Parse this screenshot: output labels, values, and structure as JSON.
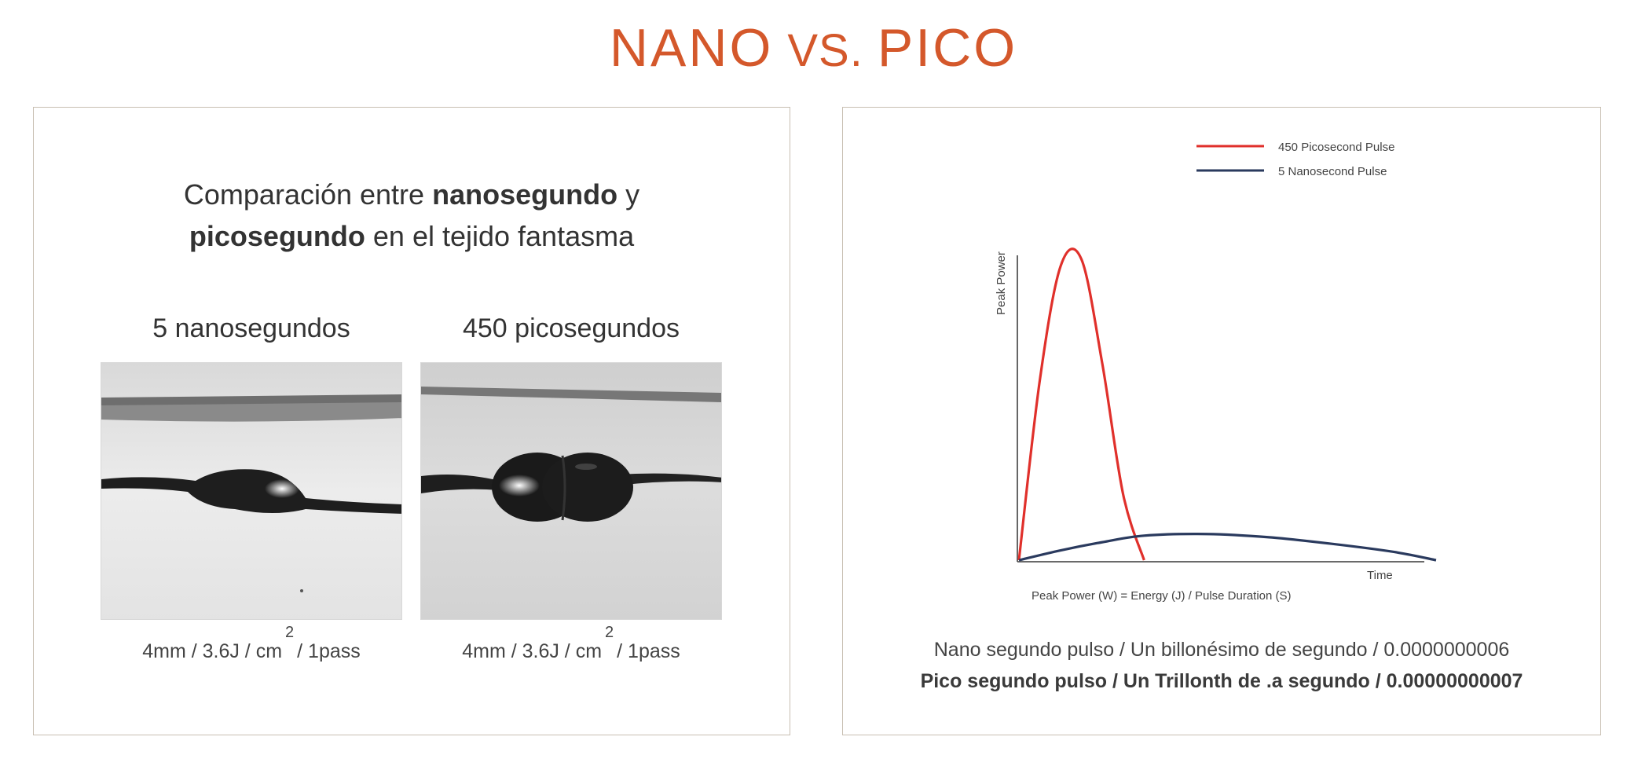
{
  "title": {
    "left": "NANO",
    "vs": "VS.",
    "right": "PICO"
  },
  "left_panel": {
    "heading": {
      "part1": "Comparación entre ",
      "bold1": "nanosegundo",
      "part2": " y",
      "bold2": "picosegundo",
      "part3": " en el tejido fantasma"
    },
    "columns": [
      {
        "title": "5 nanosegundos",
        "spec_main": "4mm / 3.6J / cm",
        "spec_sup": "2",
        "spec_end": "/ 1pass"
      },
      {
        "title": "450 picosegundos",
        "spec_main": "4mm / 3.6J / cm",
        "spec_sup": "2",
        "spec_end": "/ 1pass"
      }
    ]
  },
  "right_panel": {
    "chart_data": {
      "type": "line",
      "ylabel": "Peak Power",
      "xlabel": "Time",
      "formula": "Peak Power (W) = Energy (J) / Pulse Duration (S)",
      "legend_position": "top-right",
      "series": [
        {
          "name": "450 Picosecond Pulse",
          "color": "#e0302b",
          "x": [
            0,
            0.05,
            0.1,
            0.15,
            0.2,
            0.25,
            0.3
          ],
          "y": [
            0,
            0.55,
            0.9,
            0.92,
            0.6,
            0.2,
            0
          ]
        },
        {
          "name": "5 Nanosecond Pulse",
          "color": "#2a3a5e",
          "x": [
            0,
            0.1,
            0.2,
            0.3,
            0.45,
            0.6,
            0.75,
            0.9,
            1.0
          ],
          "y": [
            0,
            0.03,
            0.055,
            0.075,
            0.08,
            0.07,
            0.05,
            0.025,
            0
          ]
        }
      ]
    },
    "desc_line1": "Nano segundo pulso / Un billonésimo de segundo / 0.0000000006",
    "desc_line2": "Pico segundo pulso / Un Trillonth de .a segundo / 0.00000000007"
  }
}
